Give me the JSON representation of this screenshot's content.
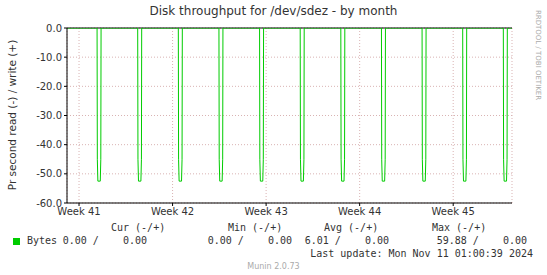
{
  "chart_data": {
    "type": "line",
    "title": "Disk throughput for /dev/sdez - by month",
    "y_label": "Pr second read (-) / write (+)",
    "x": [
      0,
      2.25,
      2.27,
      2.31,
      2.49,
      2.53,
      2.55,
      5.29,
      5.31,
      5.35,
      5.53,
      5.57,
      5.59,
      8.33,
      8.35,
      8.39,
      8.57,
      8.61,
      8.63,
      11.37,
      11.39,
      11.43,
      11.61,
      11.65,
      11.67,
      14.41,
      14.43,
      14.47,
      14.65,
      14.69,
      14.71,
      17.45,
      17.47,
      17.51,
      17.69,
      17.73,
      17.75,
      20.49,
      20.51,
      20.55,
      20.73,
      20.77,
      20.79,
      23.53,
      23.55,
      23.59,
      23.77,
      23.81,
      23.83,
      26.57,
      26.59,
      26.63,
      26.81,
      26.85,
      26.87,
      29.61,
      29.63,
      29.67,
      29.85,
      29.89,
      29.91,
      32.65,
      32.67,
      32.71,
      32.89,
      32.93,
      32.95,
      33.3
    ],
    "series": [
      {
        "name": "Bytes",
        "color": "#00cc00",
        "values": [
          0,
          0,
          -45,
          -52.5,
          -52.5,
          -45,
          0,
          0,
          -45,
          -52.5,
          -52.5,
          -45,
          0,
          0,
          -45,
          -52.5,
          -52.5,
          -45,
          0,
          0,
          -45,
          -52.5,
          -52.5,
          -45,
          0,
          0,
          -45,
          -52.5,
          -52.5,
          -45,
          0,
          0,
          -45,
          -52.5,
          -52.5,
          -45,
          0,
          0,
          -45,
          -52.5,
          -52.5,
          -45,
          0,
          0,
          -45,
          -52.5,
          -52.5,
          -45,
          0,
          0,
          -45,
          -52.5,
          -52.5,
          -45,
          0,
          0,
          -45,
          -52.5,
          -52.5,
          -45,
          0,
          0,
          -45,
          -52.5,
          -52.5,
          -45,
          0,
          0
        ]
      }
    ],
    "xlim": [
      0,
      33.3
    ],
    "xticks": [
      {
        "value": 0.9,
        "label": "Week 41"
      },
      {
        "value": 7.9,
        "label": "Week 42"
      },
      {
        "value": 14.9,
        "label": "Week 43"
      },
      {
        "value": 21.9,
        "label": "Week 44"
      },
      {
        "value": 28.9,
        "label": "Week 45"
      }
    ],
    "ylim": [
      -60,
      0
    ],
    "yticks": [
      {
        "value": -60,
        "label": "-60.0"
      },
      {
        "value": -50,
        "label": "-50.0"
      },
      {
        "value": -40,
        "label": "-40.0"
      },
      {
        "value": -30,
        "label": "-30.0"
      },
      {
        "value": -20,
        "label": "-20.0"
      },
      {
        "value": -10,
        "label": "-10.0"
      },
      {
        "value": 0,
        "label": "0.0"
      }
    ],
    "grid": true,
    "summary": {
      "headers": [
        "Cur (-/+)",
        "Min (-/+)",
        "Avg (-/+)",
        "Max (-/+)"
      ],
      "rows": [
        {
          "name": "Bytes",
          "values": [
            "0.00 /    0.00",
            "0.00 /    0.00",
            "6.01 /    0.00",
            "59.88 /    0.00"
          ]
        }
      ]
    },
    "last_update": "Last update: Mon Nov 11 01:00:39 2024",
    "footer": "Munin 2.0.73",
    "watermark": "RRDTOOL / TOBI OETIKER"
  }
}
